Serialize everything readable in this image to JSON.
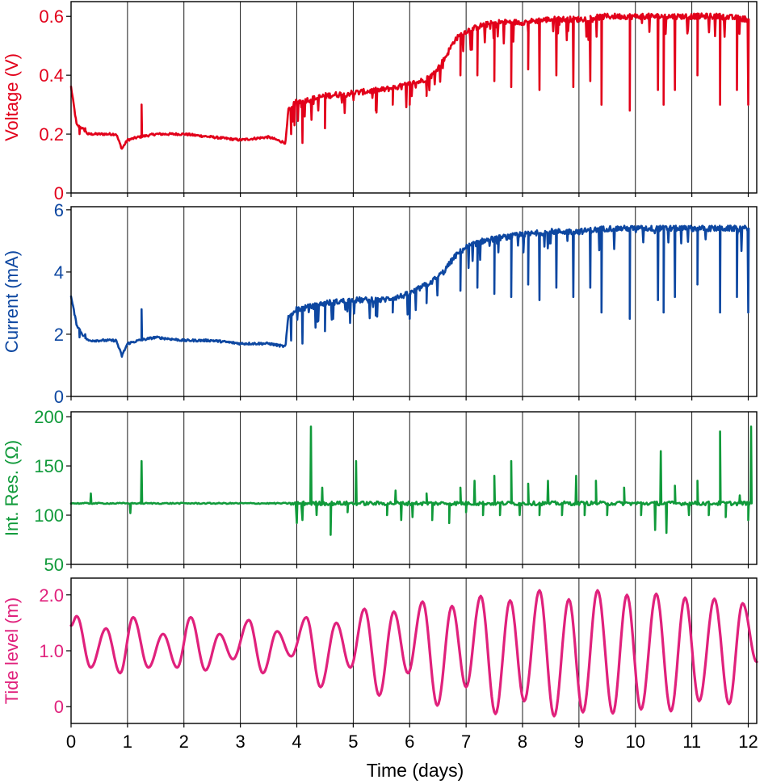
{
  "figure": {
    "xlabel": "Time (days)",
    "xticks": [
      0,
      1,
      2,
      3,
      4,
      5,
      6,
      7,
      8,
      9,
      10,
      11,
      12
    ],
    "xlim": [
      0,
      12.15
    ]
  },
  "chart_data": [
    {
      "type": "line",
      "ylabel": "Voltage (V)",
      "color": "#e2001a",
      "ylim": [
        0,
        0.65
      ],
      "yticks": [
        0,
        0.2,
        0.4,
        0.6
      ],
      "ytick_labels": [
        "0",
        "0.2",
        "0.4",
        "0.6"
      ],
      "grid": "vertical at each day",
      "series": [
        {
          "x": [
            0,
            0.1,
            0.2,
            0.3,
            0.5,
            0.8,
            0.9,
            1.0,
            1.2,
            1.5,
            2.0,
            2.5,
            3.0,
            3.5,
            3.8,
            3.85,
            4.0,
            4.3,
            4.5,
            5.0,
            5.5,
            5.8,
            6.0,
            6.2,
            6.4,
            6.6,
            6.8,
            7.0,
            7.3,
            7.6,
            8.0,
            8.5,
            9.0,
            9.5,
            10.0,
            10.5,
            11.0,
            11.5,
            12.0
          ],
          "y": [
            0.36,
            0.23,
            0.22,
            0.2,
            0.2,
            0.2,
            0.15,
            0.18,
            0.19,
            0.2,
            0.2,
            0.19,
            0.18,
            0.19,
            0.17,
            0.28,
            0.31,
            0.32,
            0.33,
            0.34,
            0.35,
            0.36,
            0.37,
            0.38,
            0.4,
            0.45,
            0.52,
            0.55,
            0.57,
            0.58,
            0.58,
            0.59,
            0.59,
            0.6,
            0.6,
            0.6,
            0.6,
            0.6,
            0.59
          ],
          "dips": [
            [
              0.15,
              0.2
            ],
            [
              0.25,
              0.22
            ],
            [
              1.25,
              0.3
            ],
            [
              3.9,
              0.2
            ],
            [
              4.1,
              0.17
            ],
            [
              4.5,
              0.22
            ],
            [
              5.4,
              0.28
            ],
            [
              5.7,
              0.3
            ],
            [
              6.0,
              0.3
            ],
            [
              6.3,
              0.33
            ],
            [
              6.9,
              0.4
            ],
            [
              7.2,
              0.4
            ],
            [
              7.5,
              0.38
            ],
            [
              7.8,
              0.36
            ],
            [
              8.1,
              0.42
            ],
            [
              8.3,
              0.35
            ],
            [
              8.6,
              0.4
            ],
            [
              8.9,
              0.36
            ],
            [
              9.2,
              0.38
            ],
            [
              9.4,
              0.3
            ],
            [
              9.9,
              0.28
            ],
            [
              10.4,
              0.35
            ],
            [
              10.5,
              0.3
            ],
            [
              10.7,
              0.35
            ],
            [
              11.1,
              0.4
            ],
            [
              11.5,
              0.3
            ],
            [
              11.8,
              0.35
            ],
            [
              12.0,
              0.3
            ]
          ]
        }
      ]
    },
    {
      "type": "line",
      "ylabel": "Current (mA)",
      "color": "#0d47a1",
      "ylim": [
        0,
        6.1
      ],
      "yticks": [
        0,
        2,
        4,
        6
      ],
      "ytick_labels": [
        "0",
        "2",
        "4",
        "6"
      ],
      "grid": "vertical at each day",
      "series": [
        {
          "x": [
            0,
            0.1,
            0.2,
            0.3,
            0.5,
            0.8,
            0.9,
            1.0,
            1.2,
            1.5,
            2.0,
            2.5,
            3.0,
            3.5,
            3.8,
            3.85,
            4.0,
            4.3,
            4.5,
            5.0,
            5.5,
            5.8,
            6.0,
            6.2,
            6.4,
            6.6,
            6.8,
            7.0,
            7.3,
            7.6,
            8.0,
            8.5,
            9.0,
            9.5,
            10.0,
            10.5,
            11.0,
            11.5,
            12.0
          ],
          "y": [
            3.2,
            2.3,
            2.0,
            1.8,
            1.8,
            1.8,
            1.3,
            1.7,
            1.8,
            1.9,
            1.8,
            1.8,
            1.7,
            1.7,
            1.6,
            2.6,
            2.8,
            2.9,
            3.0,
            3.1,
            3.1,
            3.2,
            3.3,
            3.5,
            3.7,
            4.0,
            4.5,
            4.8,
            5.0,
            5.1,
            5.2,
            5.3,
            5.3,
            5.4,
            5.4,
            5.4,
            5.4,
            5.4,
            5.4
          ],
          "dips": [
            [
              0.15,
              1.9
            ],
            [
              0.25,
              2.0
            ],
            [
              1.25,
              2.8
            ],
            [
              3.9,
              1.8
            ],
            [
              4.1,
              1.7
            ],
            [
              4.5,
              2.1
            ],
            [
              5.4,
              2.6
            ],
            [
              5.7,
              2.7
            ],
            [
              6.0,
              2.5
            ],
            [
              6.3,
              3.0
            ],
            [
              6.9,
              3.4
            ],
            [
              7.2,
              3.5
            ],
            [
              7.5,
              3.3
            ],
            [
              7.8,
              3.2
            ],
            [
              8.1,
              3.6
            ],
            [
              8.3,
              3.1
            ],
            [
              8.6,
              3.5
            ],
            [
              8.9,
              3.2
            ],
            [
              9.2,
              3.5
            ],
            [
              9.4,
              2.7
            ],
            [
              9.9,
              2.5
            ],
            [
              10.4,
              3.1
            ],
            [
              10.5,
              2.7
            ],
            [
              10.7,
              3.2
            ],
            [
              11.1,
              3.6
            ],
            [
              11.5,
              2.7
            ],
            [
              11.8,
              3.2
            ],
            [
              12.0,
              2.7
            ]
          ]
        }
      ]
    },
    {
      "type": "line",
      "ylabel": "Int. Res. (Ω)",
      "color": "#109a3a",
      "ylim": [
        50,
        205
      ],
      "yticks": [
        50,
        100,
        150,
        200
      ],
      "ytick_labels": [
        "50",
        "100",
        "150",
        "200"
      ],
      "grid": "vertical at each day",
      "series": [
        {
          "x": [
            0,
            12.0
          ],
          "y": [
            112,
            112
          ],
          "spikes": [
            [
              0.35,
              122
            ],
            [
              1.05,
              102
            ],
            [
              1.25,
              155
            ],
            [
              4.0,
              92
            ],
            [
              4.1,
              95
            ],
            [
              4.25,
              190
            ],
            [
              4.35,
              100
            ],
            [
              4.45,
              128
            ],
            [
              4.6,
              80
            ],
            [
              4.9,
              103
            ],
            [
              5.05,
              155
            ],
            [
              5.6,
              100
            ],
            [
              5.75,
              125
            ],
            [
              5.85,
              95
            ],
            [
              6.05,
              98
            ],
            [
              6.3,
              122
            ],
            [
              6.4,
              95
            ],
            [
              6.7,
              92
            ],
            [
              6.9,
              128
            ],
            [
              7.0,
              103
            ],
            [
              7.15,
              135
            ],
            [
              7.3,
              100
            ],
            [
              7.5,
              140
            ],
            [
              7.6,
              100
            ],
            [
              7.8,
              155
            ],
            [
              7.95,
              100
            ],
            [
              8.1,
              132
            ],
            [
              8.3,
              100
            ],
            [
              8.45,
              135
            ],
            [
              8.7,
              100
            ],
            [
              8.95,
              140
            ],
            [
              9.1,
              100
            ],
            [
              9.3,
              135
            ],
            [
              9.5,
              100
            ],
            [
              9.8,
              128
            ],
            [
              10.1,
              100
            ],
            [
              10.35,
              85
            ],
            [
              10.45,
              165
            ],
            [
              10.55,
              82
            ],
            [
              10.7,
              130
            ],
            [
              10.95,
              100
            ],
            [
              11.1,
              135
            ],
            [
              11.3,
              100
            ],
            [
              11.5,
              185
            ],
            [
              11.6,
              98
            ],
            [
              11.85,
              120
            ],
            [
              12.05,
              190
            ],
            [
              12.0,
              95
            ]
          ]
        }
      ]
    },
    {
      "type": "line",
      "ylabel": "Tide level (m)",
      "color": "#e0217c",
      "ylim": [
        -0.3,
        2.3
      ],
      "yticks": [
        0,
        1.0,
        2.0
      ],
      "ytick_labels": [
        "0",
        "1.0",
        "2.0"
      ],
      "grid": "vertical at each day",
      "series": [
        {
          "peaks": [
            [
              0.1,
              1.62
            ],
            [
              0.35,
              0.7
            ],
            [
              0.62,
              1.4
            ],
            [
              0.87,
              0.6
            ],
            [
              1.1,
              1.6
            ],
            [
              1.37,
              0.7
            ],
            [
              1.63,
              1.3
            ],
            [
              1.88,
              0.7
            ],
            [
              2.12,
              1.6
            ],
            [
              2.38,
              0.65
            ],
            [
              2.63,
              1.3
            ],
            [
              2.87,
              0.85
            ],
            [
              3.15,
              1.55
            ],
            [
              3.4,
              0.6
            ],
            [
              3.65,
              1.35
            ],
            [
              3.9,
              0.9
            ],
            [
              4.17,
              1.6
            ],
            [
              4.42,
              0.35
            ],
            [
              4.7,
              1.5
            ],
            [
              4.95,
              0.7
            ],
            [
              5.2,
              1.75
            ],
            [
              5.46,
              0.2
            ],
            [
              5.72,
              1.7
            ],
            [
              5.97,
              0.6
            ],
            [
              6.23,
              1.88
            ],
            [
              6.49,
              0.02
            ],
            [
              6.75,
              1.8
            ],
            [
              7.0,
              0.35
            ],
            [
              7.26,
              1.98
            ],
            [
              7.52,
              -0.13
            ],
            [
              7.78,
              1.9
            ],
            [
              8.03,
              0.1
            ],
            [
              8.3,
              2.08
            ],
            [
              8.56,
              -0.17
            ],
            [
              8.82,
              1.92
            ],
            [
              9.07,
              -0.1
            ],
            [
              9.33,
              2.08
            ],
            [
              9.6,
              -0.12
            ],
            [
              9.85,
              2.0
            ],
            [
              10.1,
              -0.05
            ],
            [
              10.37,
              2.02
            ],
            [
              10.63,
              -0.08
            ],
            [
              10.88,
              1.95
            ],
            [
              11.13,
              0.1
            ],
            [
              11.4,
              1.93
            ],
            [
              11.66,
              0.05
            ],
            [
              11.9,
              1.85
            ],
            [
              12.15,
              0.8
            ]
          ]
        }
      ]
    }
  ]
}
